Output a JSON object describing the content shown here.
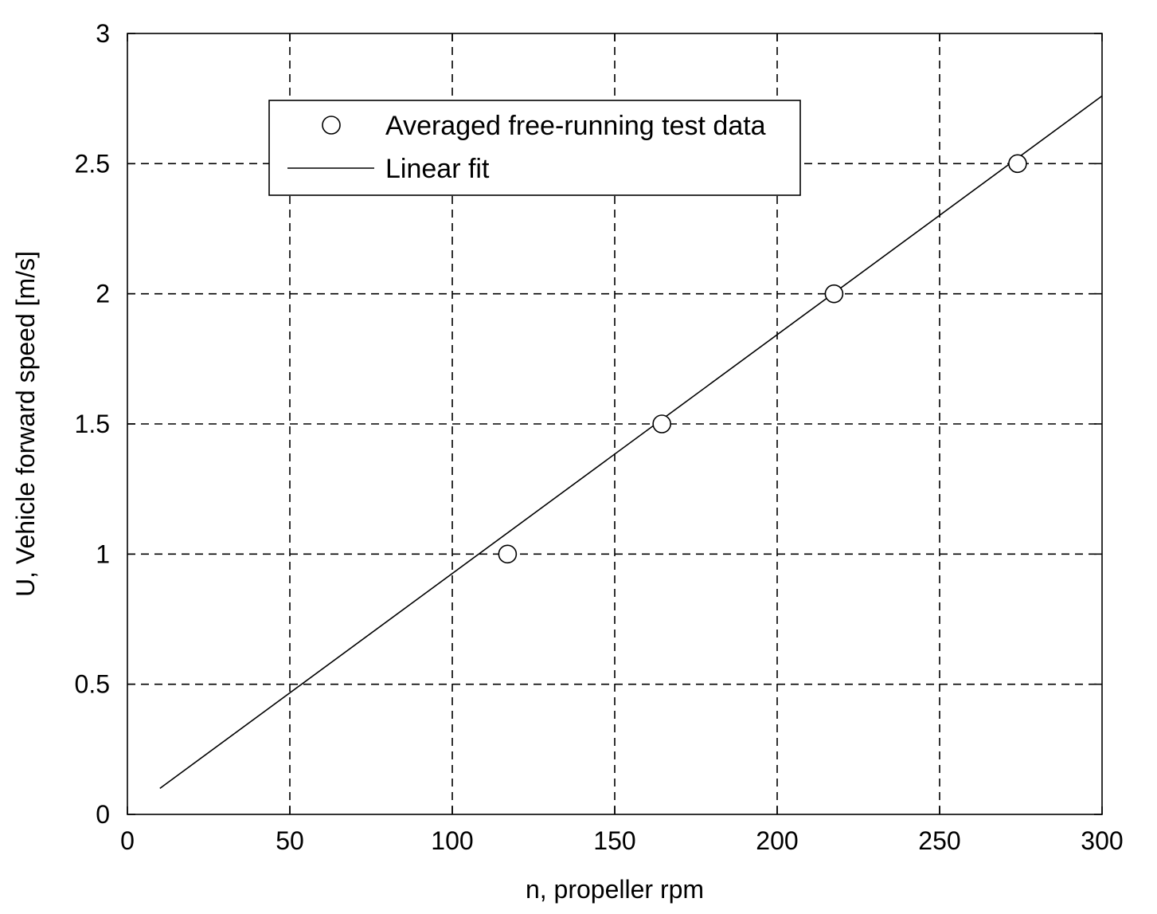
{
  "chart_data": {
    "type": "scatter",
    "xlabel": "n, propeller rpm",
    "ylabel": "U, Vehicle forward speed [m/s]",
    "xlim": [
      0,
      300
    ],
    "ylim": [
      0,
      3
    ],
    "x_ticks": [
      "0",
      "50",
      "100",
      "150",
      "200",
      "250",
      "300"
    ],
    "y_ticks": [
      "0",
      "0.5",
      "1",
      "1.5",
      "2",
      "2.5",
      "3"
    ],
    "grid": true,
    "legend_position": "upper-left",
    "series": [
      {
        "name": "Averaged free-running test data",
        "kind": "markers",
        "marker": "open-circle",
        "x": [
          117,
          164.5,
          217.5,
          274
        ],
        "y": [
          1.0,
          1.5,
          2.0,
          2.5
        ]
      },
      {
        "name": "Linear fit",
        "kind": "line",
        "x": [
          10,
          300
        ],
        "y": [
          0.1,
          2.76
        ]
      }
    ]
  }
}
